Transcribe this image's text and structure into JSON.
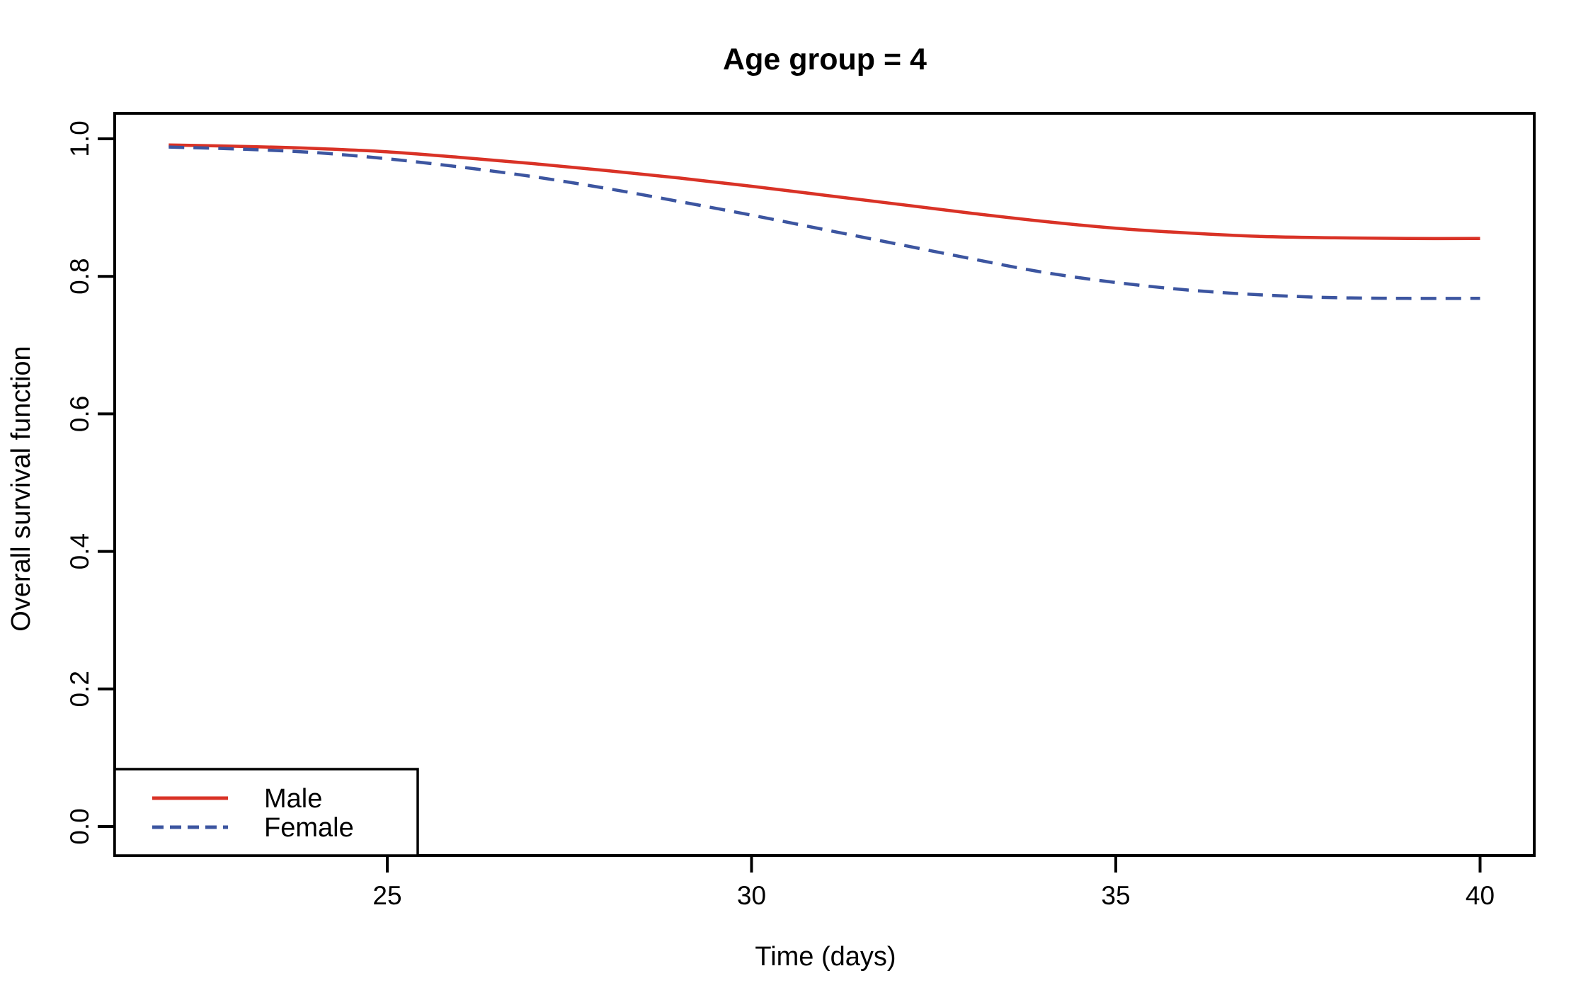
{
  "chart_data": {
    "type": "line",
    "title": "Age group = 4",
    "xlabel": "Time (days)",
    "ylabel": "Overall survival function",
    "grid": false,
    "legend_position": "bottom-left",
    "xlim": [
      21.3,
      40.7
    ],
    "ylim": [
      -0.04,
      1.04
    ],
    "x_ticks": [
      {
        "value": 25,
        "label": "25"
      },
      {
        "value": 30,
        "label": "30"
      },
      {
        "value": 35,
        "label": "35"
      },
      {
        "value": 40,
        "label": "40"
      }
    ],
    "y_ticks": [
      {
        "value": 0.0,
        "label": "0.0"
      },
      {
        "value": 0.2,
        "label": "0.2"
      },
      {
        "value": 0.4,
        "label": "0.4"
      },
      {
        "value": 0.6,
        "label": "0.6"
      },
      {
        "value": 0.8,
        "label": "0.8"
      },
      {
        "value": 1.0,
        "label": "1.0"
      }
    ],
    "x": [
      22,
      23,
      24,
      25,
      26,
      27,
      28,
      29,
      30,
      31,
      32,
      33,
      34,
      35,
      36,
      37,
      38,
      39,
      40
    ],
    "series": [
      {
        "name": "Male",
        "color": "#d93226",
        "style": "solid",
        "values": [
          0.991,
          0.989,
          0.986,
          0.981,
          0.973,
          0.964,
          0.954,
          0.943,
          0.931,
          0.918,
          0.905,
          0.892,
          0.88,
          0.87,
          0.863,
          0.858,
          0.856,
          0.855,
          0.855
        ]
      },
      {
        "name": "Female",
        "color": "#3c55a0",
        "style": "dashed",
        "values": [
          0.988,
          0.985,
          0.98,
          0.971,
          0.959,
          0.945,
          0.928,
          0.909,
          0.889,
          0.868,
          0.847,
          0.826,
          0.806,
          0.791,
          0.78,
          0.773,
          0.769,
          0.768,
          0.768
        ]
      }
    ],
    "axis_color": "#000000",
    "background_color": "#ffffff"
  }
}
